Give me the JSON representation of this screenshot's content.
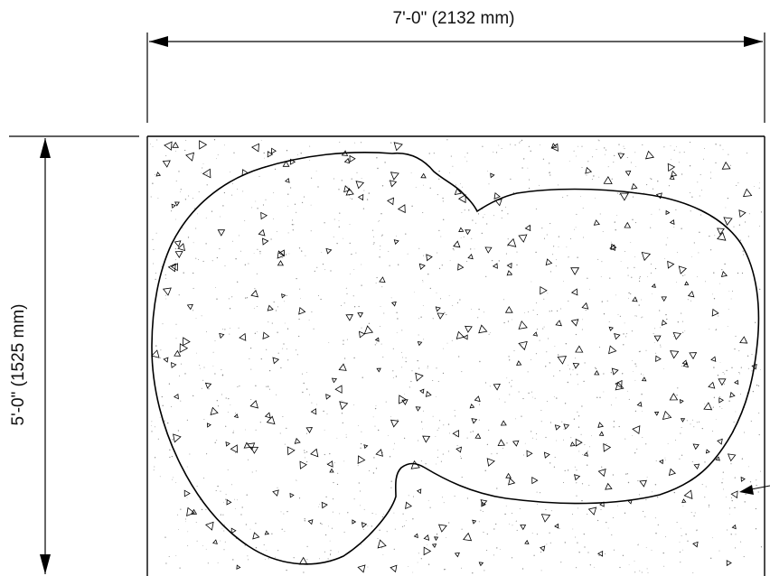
{
  "drawing": {
    "width_dimension": "7'-0\" (2132 mm)",
    "height_dimension": "5'-0\" (1525 mm)",
    "outline_color": "#000000",
    "aggregate_symbol": "triangle-aggregate",
    "fill_pattern": "concrete-stipple"
  }
}
